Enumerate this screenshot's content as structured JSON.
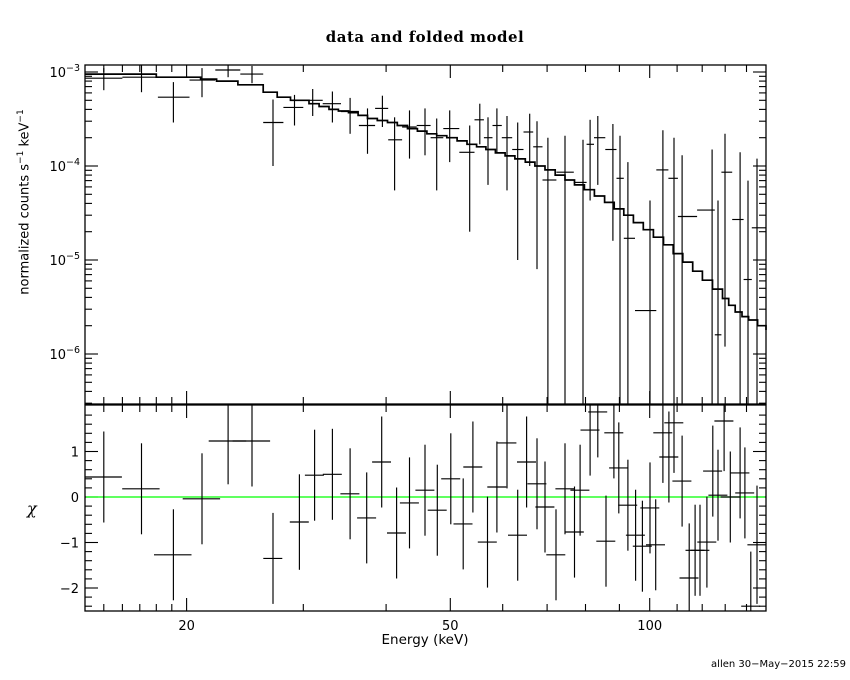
{
  "title": "data and folded model",
  "footer": "allen 30−May−2015 22:59",
  "chart_data": {
    "type": "line",
    "description": "Two-panel X-ray spectral fit: folded spectrum data with stepped model (top), chi residuals around zero (bottom)",
    "colors": {
      "data": "#000000",
      "model": "#000000",
      "zero_line": "#00ff00",
      "background": "#ffffff",
      "frame": "#000000"
    },
    "x": {
      "label": "Energy (keV)",
      "scale": "log",
      "range": [
        14.05,
        149.8
      ],
      "major_ticks": [
        20,
        50,
        100
      ],
      "minor_ticks": [
        15,
        16,
        17,
        18,
        19,
        30,
        40,
        60,
        70,
        80,
        90,
        110,
        120,
        130,
        140
      ]
    },
    "top": {
      "ylabel_segments": [
        [
          "t",
          "normalized counts s"
        ],
        [
          "sup",
          "−1"
        ],
        [
          "t",
          " keV"
        ],
        [
          "sup",
          "−1"
        ]
      ],
      "scale": "log",
      "y_range": [
        2.94e-07,
        0.001187
      ],
      "ytick_exponents": [
        -3,
        -4,
        -5,
        -6
      ],
      "model_step_columns": [
        "E_keV",
        "value"
      ],
      "model_step": [
        [
          14.05,
          0.00095
        ],
        [
          18.0,
          0.00088
        ],
        [
          21.0,
          0.00084
        ],
        [
          22.2,
          0.0008
        ],
        [
          23.9,
          0.00073
        ],
        [
          26.1,
          0.00061
        ],
        [
          27.4,
          0.00054
        ],
        [
          28.7,
          0.0005
        ],
        [
          30.6,
          0.00046
        ],
        [
          31.7,
          0.00043
        ],
        [
          32.8,
          0.0004
        ],
        [
          33.9,
          0.000385
        ],
        [
          35.1,
          0.00037
        ],
        [
          36.3,
          0.000345
        ],
        [
          37.5,
          0.00032
        ],
        [
          38.8,
          0.000305
        ],
        [
          40.2,
          0.00029
        ],
        [
          41.6,
          0.00027
        ],
        [
          43.1,
          0.00025
        ],
        [
          44.6,
          0.000235
        ],
        [
          46.1,
          0.00022
        ],
        [
          47.7,
          0.00021
        ],
        [
          49.4,
          0.0002
        ],
        [
          51.2,
          0.000185
        ],
        [
          53.0,
          0.00017
        ],
        [
          54.8,
          0.00016
        ],
        [
          56.6,
          0.00015
        ],
        [
          58.5,
          0.000138
        ],
        [
          60.5,
          0.000128
        ],
        [
          62.6,
          0.000119
        ],
        [
          64.9,
          0.00011
        ],
        [
          67.1,
          0.0001
        ],
        [
          69.5,
          9.1e-05
        ],
        [
          72.0,
          8e-05
        ],
        [
          74.5,
          7.1e-05
        ],
        [
          77.0,
          6.3e-05
        ],
        [
          79.7,
          5.6e-05
        ],
        [
          82.5,
          4.8e-05
        ],
        [
          85.5,
          4.1e-05
        ],
        [
          88.4,
          3.5e-05
        ],
        [
          91.4,
          3e-05
        ],
        [
          94.5,
          2.5e-05
        ],
        [
          97.8,
          2.1e-05
        ],
        [
          101.3,
          1.75e-05
        ],
        [
          104.9,
          1.45e-05
        ],
        [
          108.5,
          1.17e-05
        ],
        [
          112.2,
          9.5e-06
        ],
        [
          116.1,
          7.6e-06
        ],
        [
          120.1,
          6.1e-06
        ],
        [
          124.4,
          4.9e-06
        ],
        [
          128.8,
          3.9e-06
        ],
        [
          131.6,
          3.3e-06
        ],
        [
          134.6,
          2.8e-06
        ],
        [
          137.8,
          2.5e-06
        ],
        [
          141.0,
          2.3e-06
        ],
        [
          145.5,
          2e-06
        ],
        [
          149.8,
          1.8e-06
        ]
      ],
      "points_columns": [
        "E_keV",
        "E_lo",
        "E_hi",
        "value",
        "err_low_bound",
        "err_high_bound"
      ],
      "points": [
        [
          15.0,
          14.05,
          16.0,
          0.00086,
          0.00064,
          0.0011
        ],
        [
          17.1,
          16.0,
          18.1,
          0.00088,
          0.00061,
          0.00119
        ],
        [
          19.1,
          18.1,
          20.2,
          0.00054,
          0.00029,
          0.00078
        ],
        [
          21.1,
          20.2,
          22.1,
          0.00082,
          0.00054,
          0.0011
        ],
        [
          23.1,
          22.1,
          24.1,
          0.00105,
          0.00088,
          0.00125
        ],
        [
          25.1,
          24.1,
          26.1,
          0.00095,
          0.00076,
          0.00116
        ],
        [
          27.0,
          26.1,
          28.0,
          0.00029,
          0.0001,
          0.00051
        ],
        [
          29.1,
          28.0,
          30.0,
          0.00042,
          0.00027,
          0.00057
        ],
        [
          31.0,
          30.0,
          32.1,
          0.0005,
          0.00034,
          0.00066
        ],
        [
          33.2,
          32.1,
          34.2,
          0.00046,
          0.00029,
          0.00062
        ],
        [
          35.3,
          34.2,
          36.4,
          0.00038,
          0.00022,
          0.00053
        ],
        [
          37.5,
          36.4,
          38.5,
          0.00027,
          0.000135,
          0.00041
        ],
        [
          39.5,
          38.5,
          40.3,
          0.00041,
          0.00026,
          0.00056
        ],
        [
          41.2,
          40.3,
          42.3,
          0.00019,
          5.5e-05,
          0.00033
        ],
        [
          43.4,
          42.3,
          44.5,
          0.00026,
          0.00012,
          0.00039
        ],
        [
          45.8,
          44.5,
          46.7,
          0.00027,
          0.00013,
          0.00041
        ],
        [
          47.7,
          46.7,
          48.8,
          0.0002,
          5.5e-05,
          0.00032
        ],
        [
          49.9,
          48.8,
          51.6,
          0.00025,
          0.00011,
          0.00039
        ],
        [
          53.5,
          51.6,
          54.4,
          0.00014,
          2e-05,
          0.00027
        ],
        [
          55.4,
          54.4,
          56.2,
          0.00031,
          0.00017,
          0.00046
        ],
        [
          57.0,
          56.2,
          57.9,
          0.0002,
          6.3e-05,
          0.00033
        ],
        [
          58.8,
          57.9,
          59.8,
          0.00027,
          0.00014,
          0.00041
        ],
        [
          60.9,
          59.8,
          62.0,
          0.0002,
          5.5e-05,
          0.00034
        ],
        [
          63.2,
          62.0,
          64.5,
          0.00015,
          1e-05,
          0.00029
        ],
        [
          65.9,
          64.5,
          66.7,
          0.00023,
          0.0001,
          0.00036
        ],
        [
          67.6,
          66.7,
          68.9,
          0.00016,
          8e-06,
          0.0003
        ],
        [
          70.2,
          68.9,
          72.3,
          7.1e-05,
          1e-07,
          0.0002
        ],
        [
          74.5,
          72.3,
          76.8,
          8.6e-05,
          1e-07,
          0.00021
        ],
        [
          79.3,
          76.8,
          80.3,
          6.7e-05,
          1e-07,
          0.00019
        ],
        [
          81.3,
          80.3,
          82.4,
          0.00017,
          4.3e-05,
          0.00031
        ],
        [
          83.5,
          82.4,
          85.7,
          0.0002,
          6.3e-05,
          0.00034
        ],
        [
          88.0,
          85.7,
          89.1,
          0.00015,
          1.6e-05,
          0.00028
        ],
        [
          90.2,
          89.1,
          91.4,
          7.4e-05,
          1e-07,
          0.00021
        ],
        [
          92.7,
          91.4,
          95.0,
          1.7e-05,
          1e-07,
          0.00011
        ],
        [
          100.1,
          95.0,
          102.3,
          2.9e-06,
          1e-07,
          4.3e-05
        ],
        [
          104.7,
          102.3,
          106.7,
          9.1e-05,
          1e-07,
          0.00024
        ],
        [
          108.8,
          106.7,
          110.3,
          7.4e-05,
          1e-07,
          0.0002
        ],
        [
          111.9,
          110.3,
          117.9,
          2.9e-05,
          1e-07,
          0.00013
        ],
        [
          124.2,
          117.9,
          125.4,
          3.4e-05,
          1e-07,
          0.00015
        ],
        [
          126.8,
          125.4,
          128.3,
          1.6e-06,
          1e-07,
          4.3e-05
        ],
        [
          129.9,
          128.3,
          133.2,
          8.6e-05,
          1.2e-06,
          0.00022
        ],
        [
          136.9,
          133.2,
          138.6,
          2.7e-05,
          1e-07,
          0.00014
        ],
        [
          140.7,
          138.6,
          142.6,
          6.2e-06,
          1e-07,
          7e-05
        ],
        [
          145.2,
          142.6,
          149.8,
          2.2e-05,
          1e-07,
          0.00012
        ]
      ]
    },
    "bottom": {
      "ylabel": "χ",
      "scale": "linear",
      "y_range": [
        -2.505,
        2.022
      ],
      "yticks": [
        1,
        0,
        -1,
        -2
      ],
      "minor_tick_step": 0.2,
      "zero_line_value": 0,
      "bin_halfwidth": {
        "threshold_keV": 27,
        "below_pct": 6.5,
        "above_pct": 3.3
      },
      "points_columns": [
        "E_keV",
        "chi",
        "err"
      ],
      "points": [
        [
          15.0,
          0.44,
          1.0
        ],
        [
          17.1,
          0.18,
          1.0
        ],
        [
          19.1,
          -1.27,
          1.0
        ],
        [
          21.1,
          -0.04,
          1.0
        ],
        [
          23.1,
          1.23,
          0.95
        ],
        [
          25.1,
          1.23,
          1.0
        ],
        [
          27.0,
          -1.35,
          1.0
        ],
        [
          29.6,
          -0.55,
          1.05
        ],
        [
          31.2,
          0.48,
          1.0
        ],
        [
          33.2,
          0.5,
          1.0
        ],
        [
          35.3,
          0.07,
          1.0
        ],
        [
          37.4,
          -0.46,
          1.0
        ],
        [
          39.4,
          0.77,
          1.0
        ],
        [
          41.5,
          -0.79,
          1.0
        ],
        [
          43.4,
          -0.13,
          1.0
        ],
        [
          45.8,
          0.15,
          1.0
        ],
        [
          47.8,
          -0.29,
          1.0
        ],
        [
          50.1,
          0.4,
          1.0
        ],
        [
          52.3,
          -0.59,
          1.0
        ],
        [
          54.1,
          0.66,
          1.0
        ],
        [
          56.9,
          -0.99,
          1.0
        ],
        [
          58.8,
          0.22,
          1.0
        ],
        [
          60.9,
          1.19,
          1.0
        ],
        [
          63.2,
          -0.84,
          1.0
        ],
        [
          65.2,
          0.77,
          1.0
        ],
        [
          67.6,
          0.29,
          1.0
        ],
        [
          69.5,
          -0.22,
          1.0
        ],
        [
          72.2,
          -1.27,
          1.0
        ],
        [
          74.5,
          0.18,
          1.0
        ],
        [
          77.0,
          -0.77,
          1.0
        ],
        [
          78.5,
          0.15,
          1.0
        ],
        [
          81.3,
          1.47,
          1.0
        ],
        [
          83.5,
          1.87,
          1.0
        ],
        [
          85.9,
          -0.97,
          1.0
        ],
        [
          88.3,
          1.41,
          1.0
        ],
        [
          89.8,
          0.64,
          1.0
        ],
        [
          92.7,
          -0.18,
          1.0
        ],
        [
          95.2,
          -0.84,
          1.0
        ],
        [
          97.5,
          -1.08,
          1.0
        ],
        [
          100.1,
          -0.24,
          1.0
        ],
        [
          102.1,
          -1.05,
          1.0
        ],
        [
          104.7,
          1.41,
          1.1
        ],
        [
          106.9,
          0.88,
          1.0
        ],
        [
          108.8,
          1.63,
          1.1
        ],
        [
          111.9,
          0.35,
          1.0
        ],
        [
          114.7,
          -1.78,
          1.2
        ],
        [
          117.1,
          -1.17,
          1.0
        ],
        [
          119.1,
          -1.17,
          1.0
        ],
        [
          122.0,
          -0.99,
          1.0
        ],
        [
          124.5,
          0.57,
          1.0
        ],
        [
          126.8,
          0.04,
          1.0
        ],
        [
          129.5,
          1.67,
          1.1
        ],
        [
          132.3,
          0.0,
          1.0
        ],
        [
          136.9,
          0.53,
          1.0
        ],
        [
          139.2,
          0.09,
          1.0
        ],
        [
          142.1,
          -2.4,
          1.2
        ],
        [
          145.2,
          -1.05,
          1.3
        ]
      ]
    }
  }
}
